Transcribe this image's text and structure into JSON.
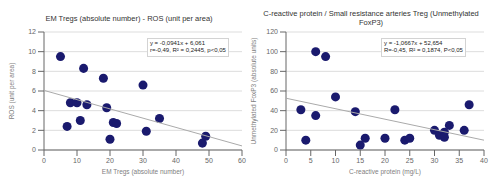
{
  "chart_data": [
    {
      "type": "scatter",
      "title": "EM Tregs (absolute number) - ROS (unit per area)",
      "x_label": "EM Tregs (absolute number)",
      "y_label": "ROS (unit per area)",
      "xlim": [
        0,
        60
      ],
      "ylim": [
        0,
        12
      ],
      "xticks": [
        0,
        10,
        20,
        30,
        40,
        50,
        60
      ],
      "yticks": [
        0,
        2,
        4,
        6,
        8,
        10,
        12
      ],
      "grid": "y",
      "annotations": [
        "y = -0,0941x + 6,061",
        "r=-0,49, R² = 0,2445, p<0,05"
      ],
      "series": [
        {
          "type": "scatter",
          "color": "#1a1a6e",
          "x": [
            5,
            7,
            8,
            10,
            11,
            12,
            13,
            18,
            19,
            20,
            21,
            22,
            30,
            31,
            35,
            48,
            49
          ],
          "values": [
            9.5,
            2.4,
            4.8,
            4.8,
            3.0,
            8.3,
            4.6,
            7.3,
            4.3,
            1.1,
            2.8,
            2.7,
            6.6,
            1.9,
            3.2,
            0.7,
            1.4
          ]
        },
        {
          "type": "line",
          "color": "#aaaaaa",
          "x": [
            0,
            60
          ],
          "values": [
            6.061,
            0.415
          ]
        }
      ]
    },
    {
      "type": "scatter",
      "title": "C-reactive protein / Small resistance arteries Treg (Unmethylated FoxP3)",
      "x_label": "C-reactive protein (mg/L)",
      "y_label": "Unmethylated FoxP3 (absolute units)",
      "xlim": [
        0,
        40
      ],
      "ylim": [
        0,
        120
      ],
      "xticks": [
        0,
        5,
        10,
        15,
        20,
        25,
        30,
        35,
        40
      ],
      "yticks": [
        0,
        20,
        40,
        60,
        80,
        100,
        120
      ],
      "grid": "y",
      "annotations": [
        "y = -1,0667x + 52,654",
        "R=-0,45, R² = 0,1874, P<0,05"
      ],
      "series": [
        {
          "type": "scatter",
          "color": "#1a1a6e",
          "x": [
            3,
            4,
            6,
            6,
            8,
            10,
            14,
            15,
            16,
            20,
            22,
            24,
            25,
            30,
            31,
            32,
            32,
            33,
            36,
            37
          ],
          "values": [
            41,
            10,
            100,
            35,
            95,
            54,
            39,
            5,
            12,
            12,
            41,
            10,
            12,
            20,
            15,
            18,
            13,
            25,
            20,
            46
          ]
        },
        {
          "type": "line",
          "color": "#aaaaaa",
          "x": [
            0,
            40
          ],
          "values": [
            52.654,
            9.986
          ]
        }
      ]
    }
  ]
}
